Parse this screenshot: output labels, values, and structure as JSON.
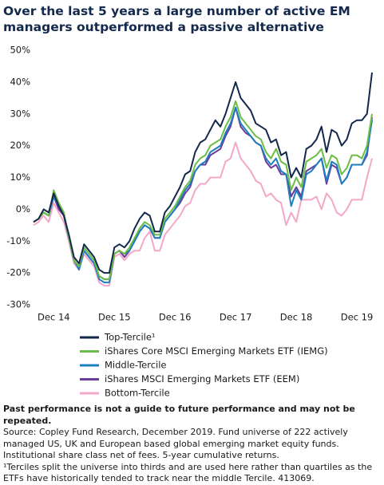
{
  "chart_data": {
    "type": "line",
    "title": "Over the last 5 years a large number of active EM managers outperformed a passive alternative",
    "categories": [
      null,
      null,
      null,
      null,
      "Dec 14",
      null,
      null,
      null,
      null,
      null,
      null,
      null,
      null,
      null,
      null,
      null,
      "Dec 15",
      null,
      null,
      null,
      null,
      null,
      null,
      null,
      null,
      null,
      null,
      null,
      "Dec 16",
      null,
      null,
      null,
      null,
      null,
      null,
      null,
      null,
      null,
      null,
      null,
      "Dec 17",
      null,
      null,
      null,
      null,
      null,
      null,
      null,
      null,
      null,
      null,
      null,
      "Dec 18",
      null,
      null,
      null,
      null,
      null,
      null,
      null,
      null,
      null,
      null,
      null,
      "Dec 19",
      null,
      null,
      null
    ],
    "series": [
      {
        "name": "Top-Tercile¹",
        "color": "#13294b",
        "values": [
          -4,
          -3,
          0,
          -1,
          5,
          1,
          -2,
          -8,
          -15,
          -17,
          -11,
          -13,
          -15,
          -19,
          -20,
          -20,
          -12,
          -11,
          -12,
          -10,
          -6,
          -3,
          -1,
          -2,
          -7,
          -7,
          -1,
          1,
          4,
          7,
          11,
          12,
          18,
          21,
          22,
          25,
          28,
          26,
          30,
          35,
          40,
          35,
          33,
          31,
          27,
          26,
          25,
          21,
          22,
          17,
          18,
          10,
          13,
          10,
          19,
          20,
          22,
          26,
          18,
          25,
          24,
          20,
          22,
          27,
          28,
          28,
          30,
          43
        ]
      },
      {
        "name": "iShares Core MSCI Emerging Markets ETF (IEMG)",
        "color": "#6cbd45",
        "values": [
          -4,
          -3,
          -1,
          -2,
          6,
          2,
          -1,
          -9,
          -16,
          -18,
          -12,
          -14,
          -16,
          -21,
          -22,
          -22,
          -14,
          -13,
          -14,
          -12,
          -9,
          -6,
          -4,
          -5,
          -8,
          -8,
          -3,
          -1,
          1,
          4,
          7,
          9,
          14,
          16,
          17,
          20,
          21,
          22,
          26,
          29,
          34,
          29,
          27,
          25,
          23,
          22,
          18,
          16,
          19,
          15,
          14,
          6,
          10,
          7,
          15,
          16,
          17,
          19,
          13,
          17,
          16,
          11,
          13,
          17,
          17,
          16,
          20,
          30
        ]
      },
      {
        "name": "Middle-Tercile",
        "color": "#1e7fc0",
        "values": [
          -4,
          -3,
          -1,
          -2,
          4,
          1,
          -2,
          -9,
          -16,
          -19,
          -13,
          -15,
          -17,
          -22,
          -23,
          -23,
          -14,
          -13,
          -14,
          -13,
          -10,
          -7,
          -5,
          -6,
          -9,
          -9,
          -4,
          -2,
          0,
          3,
          6,
          8,
          12,
          14,
          15,
          18,
          19,
          20,
          24,
          27,
          32,
          27,
          25,
          23,
          21,
          20,
          16,
          14,
          16,
          12,
          11,
          1,
          6,
          3,
          11,
          12,
          14,
          16,
          9,
          15,
          14,
          8,
          10,
          14,
          14,
          14,
          18,
          28
        ]
      },
      {
        "name": "iShares MSCI Emerging Markets ETF (EEM)",
        "color": "#6a3d9a",
        "values": [
          -4,
          -3,
          -1,
          -2,
          4,
          0,
          -2,
          -9,
          -16,
          -18,
          -13,
          -15,
          -17,
          -21,
          -22,
          -22,
          -14,
          -13,
          -15,
          -13,
          -10,
          -7,
          -5,
          -6,
          -9,
          -9,
          -4,
          -2,
          0,
          2,
          5,
          7,
          12,
          14,
          14,
          17,
          18,
          19,
          23,
          26,
          32,
          26,
          24,
          23,
          21,
          20,
          15,
          13,
          14,
          11,
          11,
          4,
          7,
          4,
          12,
          13,
          14,
          16,
          8,
          14,
          13,
          8,
          10,
          14,
          14,
          14,
          17,
          29
        ]
      },
      {
        "name": "Bottom-Tercile",
        "color": "#f4a7c9",
        "values": [
          -5,
          -4,
          -2,
          -4,
          2,
          -1,
          -4,
          -10,
          -17,
          -19,
          -14,
          -16,
          -18,
          -23,
          -24,
          -24,
          -15,
          -14,
          -16,
          -14,
          -13,
          -13,
          -9,
          -7,
          -13,
          -13,
          -8,
          -6,
          -4,
          -2,
          1,
          2,
          6,
          8,
          8,
          10,
          10,
          10,
          15,
          16,
          21,
          16,
          14,
          12,
          9,
          8,
          4,
          5,
          3,
          2,
          -5,
          -1,
          -4,
          3,
          3,
          3,
          4,
          0,
          5,
          3,
          -1,
          -2,
          0,
          3,
          3,
          3,
          10,
          16
        ]
      }
    ],
    "ylim": [
      -30,
      50
    ],
    "yticks": [
      {
        "value": -30,
        "label": "-30%"
      },
      {
        "value": -20,
        "label": "-20%"
      },
      {
        "value": -10,
        "label": "-10%"
      },
      {
        "value": 0,
        "label": "0%"
      },
      {
        "value": 10,
        "label": "10%"
      },
      {
        "value": 20,
        "label": "20%"
      },
      {
        "value": 30,
        "label": "30%"
      },
      {
        "value": 40,
        "label": "40%"
      },
      {
        "value": 50,
        "label": "50%"
      }
    ],
    "grid": false,
    "note_bold": "Past performance is not a guide to future performance and may not be repeated.",
    "notes": [
      "Source: Copley Fund Research, December 2019. Fund universe of 222 actively managed US, UK and European based global emerging market equity funds. Institutional share class net of fees. 5-year cumulative returns.",
      "¹Terciles split the universe into thirds and are used here rather than quartiles as the ETFs have historically tended to track near the middle Tercile. 413069."
    ]
  }
}
